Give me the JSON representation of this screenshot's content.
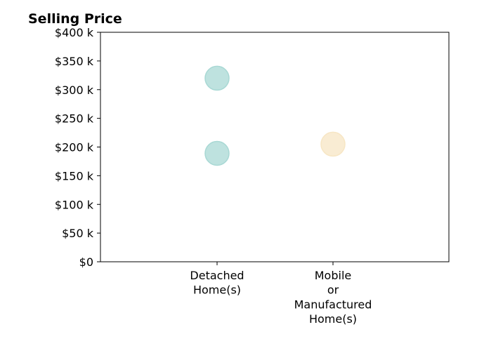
{
  "chart_data": {
    "type": "scatter",
    "title": "Selling Price",
    "xlabel": "",
    "ylabel": "",
    "categories": [
      "Detached\nHome(s)",
      "Mobile\nor\nManufactured\nHome(s)"
    ],
    "ylim": [
      0,
      400000
    ],
    "y_ticks": [
      0,
      50000,
      100000,
      150000,
      200000,
      250000,
      300000,
      350000,
      400000
    ],
    "y_tick_labels": [
      "$0",
      "$50 k",
      "$100 k",
      "$150 k",
      "$200 k",
      "$250 k",
      "$300 k",
      "$350 k",
      "$400 k"
    ],
    "points": [
      {
        "category": 0,
        "y": 320000,
        "color": "#a8d8d4"
      },
      {
        "category": 0,
        "y": 189000,
        "color": "#a8d8d4"
      },
      {
        "category": 1,
        "y": 205000,
        "color": "#f7e6c4"
      }
    ],
    "grid": false
  }
}
